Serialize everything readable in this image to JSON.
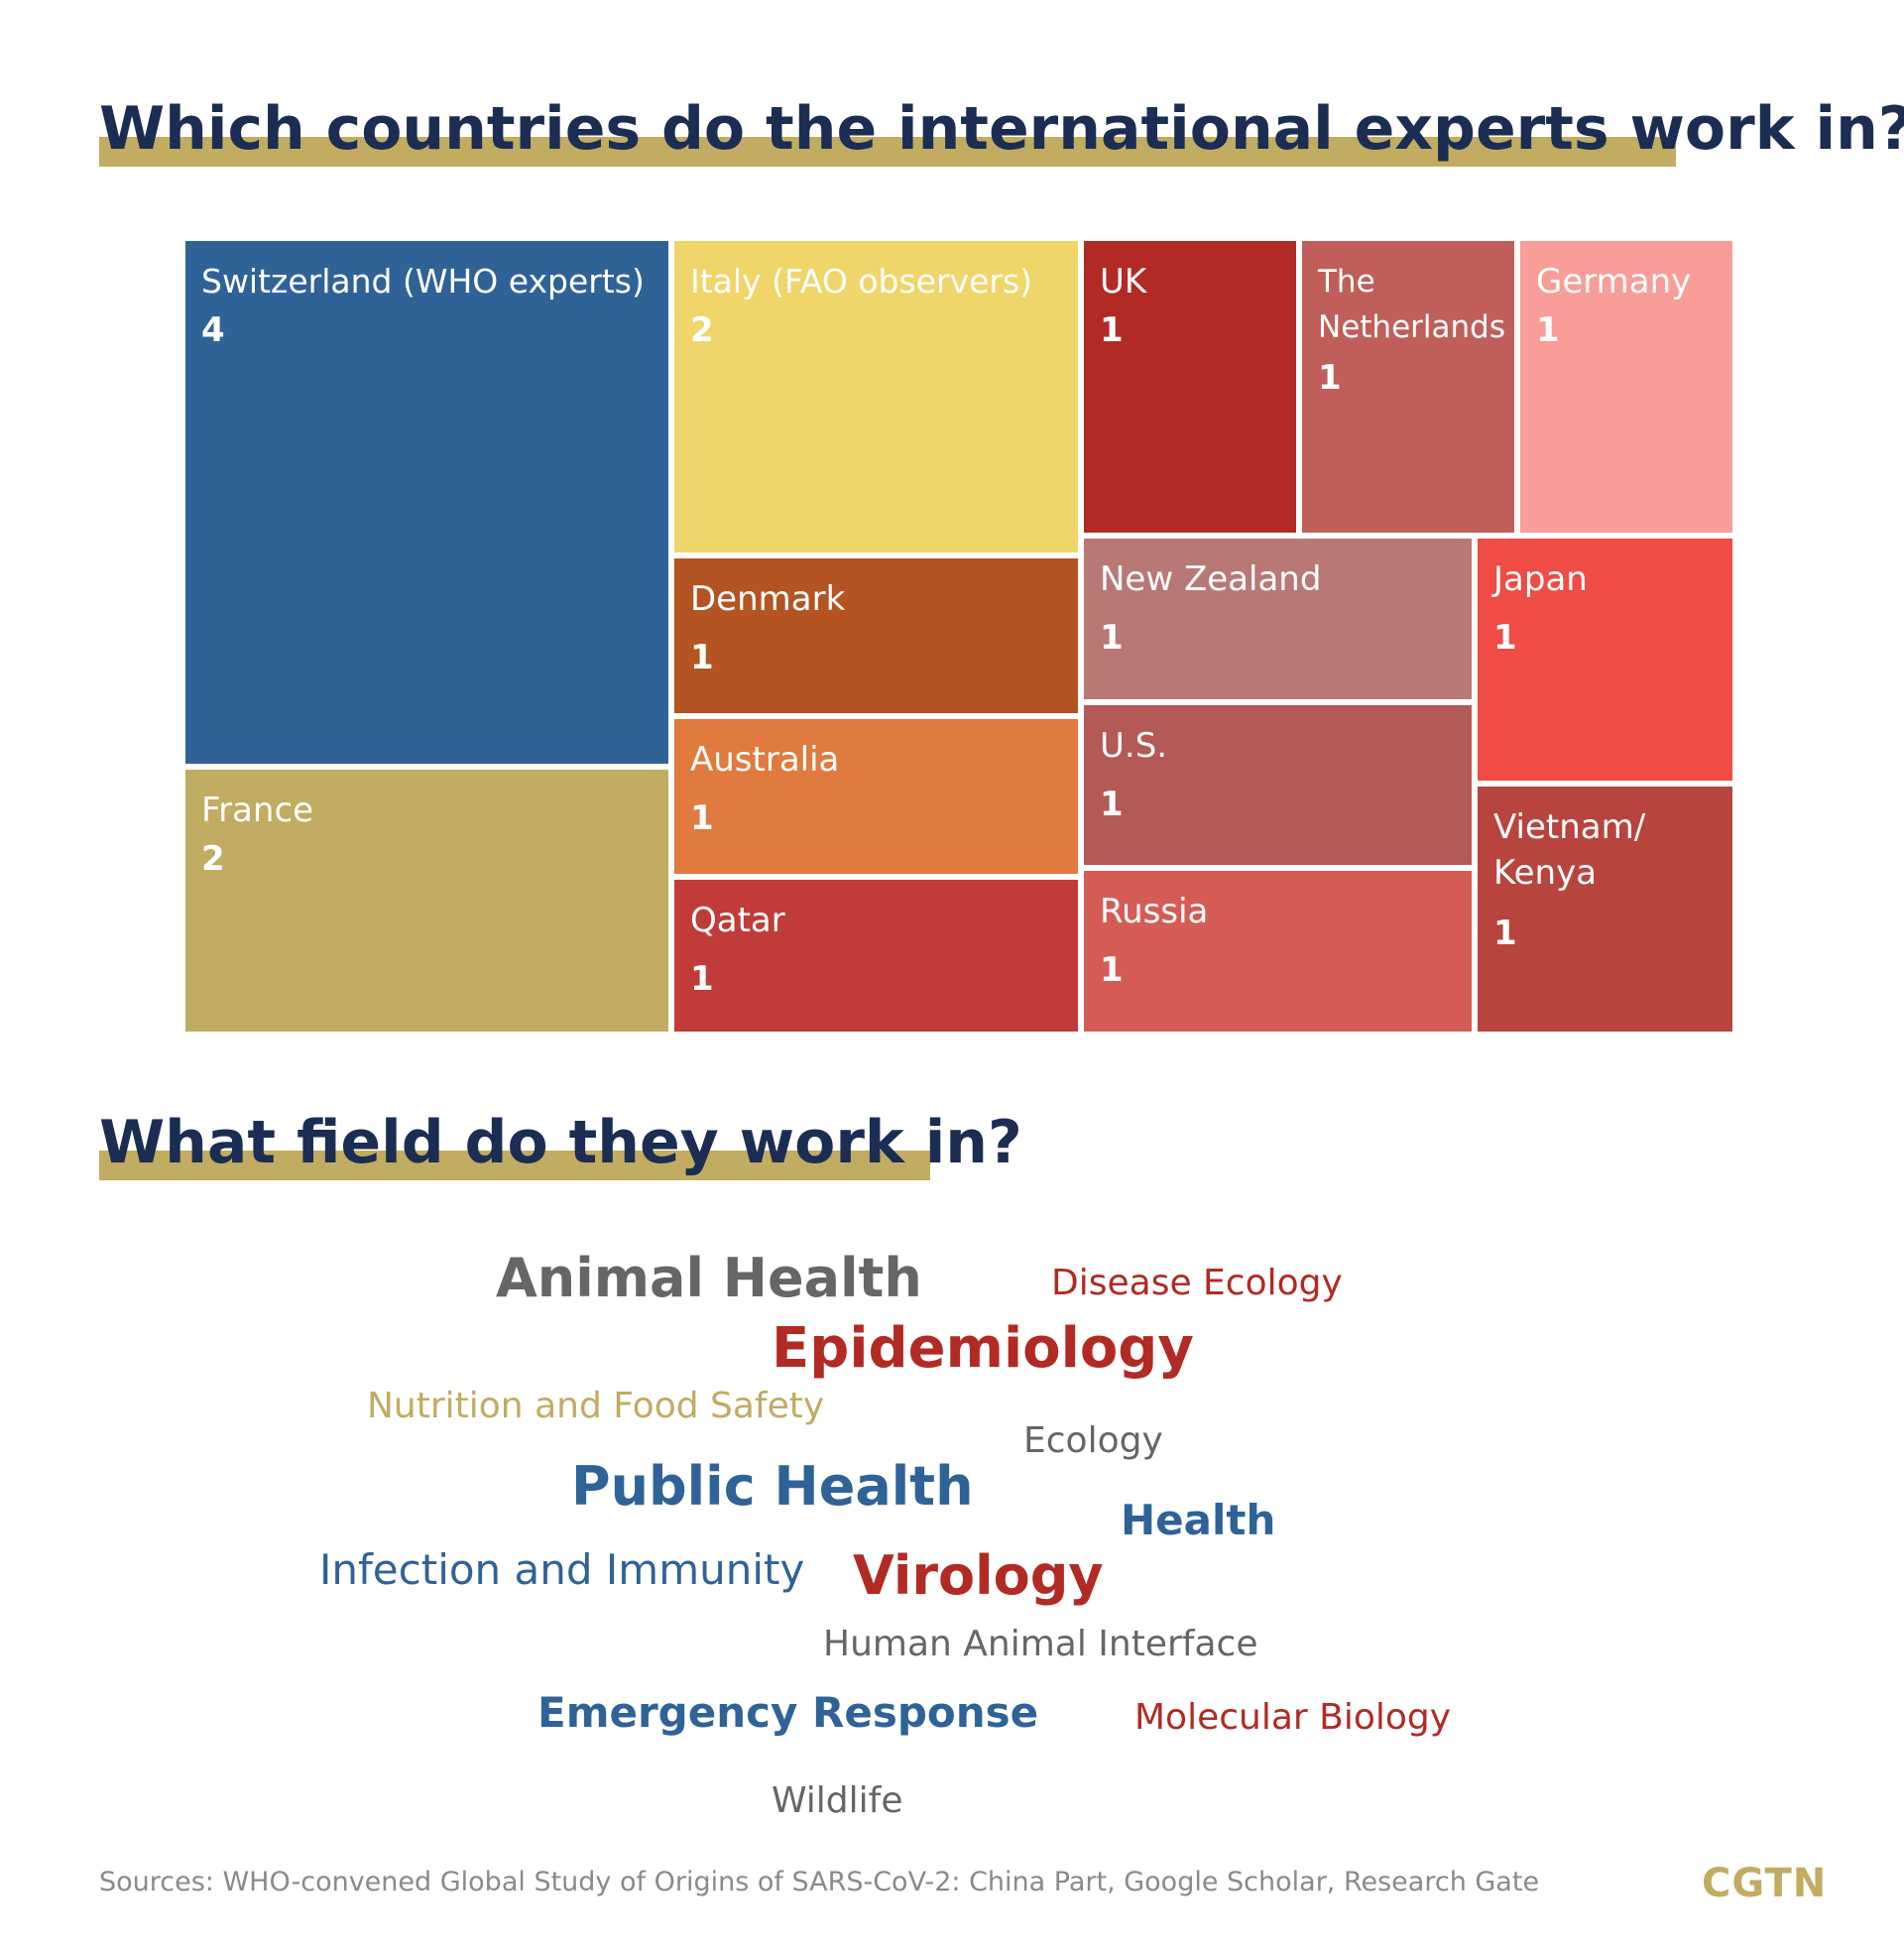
{
  "heading_countries": "Which countries do the international experts work in?",
  "heading_fields": "What field do they work in?",
  "chart_data": [
    {
      "type": "treemap",
      "title": "Which countries do the international experts work in?",
      "categories": [
        "Switzerland (WHO experts)",
        "France",
        "Italy (FAO observers)",
        "Denmark",
        "Australia",
        "Qatar",
        "UK",
        "The Netherlands",
        "Germany",
        "New Zealand",
        "U.S.",
        "Russia",
        "Japan",
        "Vietnam/ Kenya"
      ],
      "values": [
        4,
        2,
        2,
        1,
        1,
        1,
        1,
        1,
        1,
        1,
        1,
        1,
        1,
        1
      ],
      "colors": [
        "#2f6398",
        "#c0ac62",
        "#f0d66a",
        "#b45422",
        "#e07a3e",
        "#c13c38",
        "#b22a24",
        "#c05f59",
        "#f89d97",
        "#b87876",
        "#b35956",
        "#d55c55",
        "#ee4c45",
        "#b8443e"
      ]
    },
    {
      "type": "wordcloud",
      "title": "What field do they work in?",
      "words": [
        {
          "text": "Animal Health",
          "color": "#666666",
          "weight": "large"
        },
        {
          "text": "Disease Ecology",
          "color": "#b22a24",
          "weight": "small"
        },
        {
          "text": "Epidemiology",
          "color": "#b22a24",
          "weight": "large"
        },
        {
          "text": "Nutrition and Food Safety",
          "color": "#c0ac62",
          "weight": "small"
        },
        {
          "text": "Ecology",
          "color": "#666666",
          "weight": "small"
        },
        {
          "text": "Public Health",
          "color": "#2f6398",
          "weight": "large"
        },
        {
          "text": "Health",
          "color": "#2f6398",
          "weight": "medium"
        },
        {
          "text": "Infection and Immunity",
          "color": "#2f6398",
          "weight": "medium"
        },
        {
          "text": "Virology",
          "color": "#b22a24",
          "weight": "large"
        },
        {
          "text": "Human Animal Interface",
          "color": "#666666",
          "weight": "small"
        },
        {
          "text": "Emergency Response",
          "color": "#2f6398",
          "weight": "medium"
        },
        {
          "text": "Molecular Biology",
          "color": "#b22a24",
          "weight": "small"
        },
        {
          "text": "Wildlife",
          "color": "#666666",
          "weight": "small"
        }
      ]
    }
  ],
  "sources": "Sources: WHO-convened Global Study of Origins of SARS-CoV-2: China Part, Google Scholar, Research Gate",
  "logo": "CGTN"
}
